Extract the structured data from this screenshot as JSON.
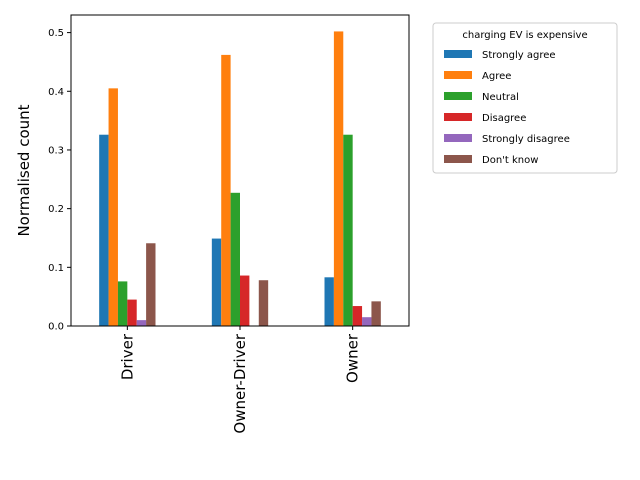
{
  "chart_data": {
    "type": "bar",
    "categories": [
      "Driver",
      "Owner-Driver",
      "Owner"
    ],
    "series": [
      {
        "name": "Strongly agree",
        "color": "#1f77b4",
        "values": [
          0.326,
          0.149,
          0.083
        ]
      },
      {
        "name": "Agree",
        "color": "#ff7f0e",
        "values": [
          0.405,
          0.462,
          0.502
        ]
      },
      {
        "name": "Neutral",
        "color": "#2ca02c",
        "values": [
          0.076,
          0.227,
          0.326
        ]
      },
      {
        "name": "Disagree",
        "color": "#d62728",
        "values": [
          0.045,
          0.086,
          0.034
        ]
      },
      {
        "name": "Strongly disagree",
        "color": "#9467bd",
        "values": [
          0.01,
          0.0,
          0.015
        ]
      },
      {
        "name": "Don't know",
        "color": "#8c564b",
        "values": [
          0.141,
          0.078,
          0.042
        ]
      }
    ],
    "ylabel": "Normalised count",
    "xlabel": "",
    "ylim": [
      0,
      0.53
    ],
    "yticks": [
      0.0,
      0.1,
      0.2,
      0.3,
      0.4,
      0.5
    ],
    "ytick_labels": [
      "0.0",
      "0.1",
      "0.2",
      "0.3",
      "0.4",
      "0.5"
    ],
    "grid": false,
    "legend": {
      "title": "charging EV is expensive",
      "placement": "outside-top-right"
    }
  }
}
